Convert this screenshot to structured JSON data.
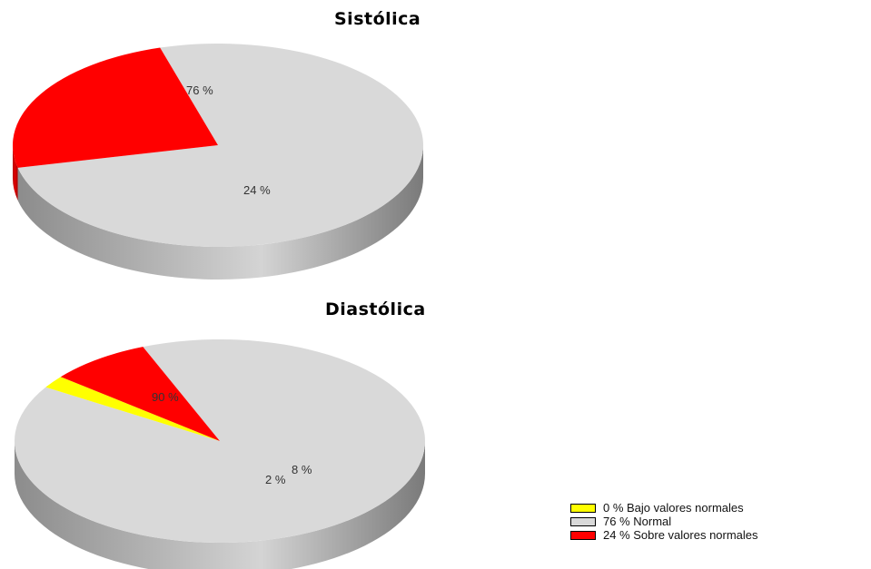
{
  "chart_data": [
    {
      "type": "pie",
      "title": "Sistólica",
      "slices": [
        {
          "label": "76 %",
          "value": 76,
          "color": "#d9d9d9"
        },
        {
          "label": "24 %",
          "value": 24,
          "color": "#ff0000"
        }
      ]
    },
    {
      "type": "pie",
      "title": "Diastólica",
      "slices": [
        {
          "label": "90 %",
          "value": 90,
          "color": "#d9d9d9"
        },
        {
          "label": "2 %",
          "value": 2,
          "color": "#ffff00"
        },
        {
          "label": "8 %",
          "value": 8,
          "color": "#ff0000"
        }
      ]
    }
  ],
  "legend": [
    {
      "text": "0 % Bajo valores normales",
      "color": "#ffff00"
    },
    {
      "text": "76 % Normal",
      "color": "#d9d9d9"
    },
    {
      "text": "24 % Sobre valores normales",
      "color": "#ff0000"
    }
  ]
}
